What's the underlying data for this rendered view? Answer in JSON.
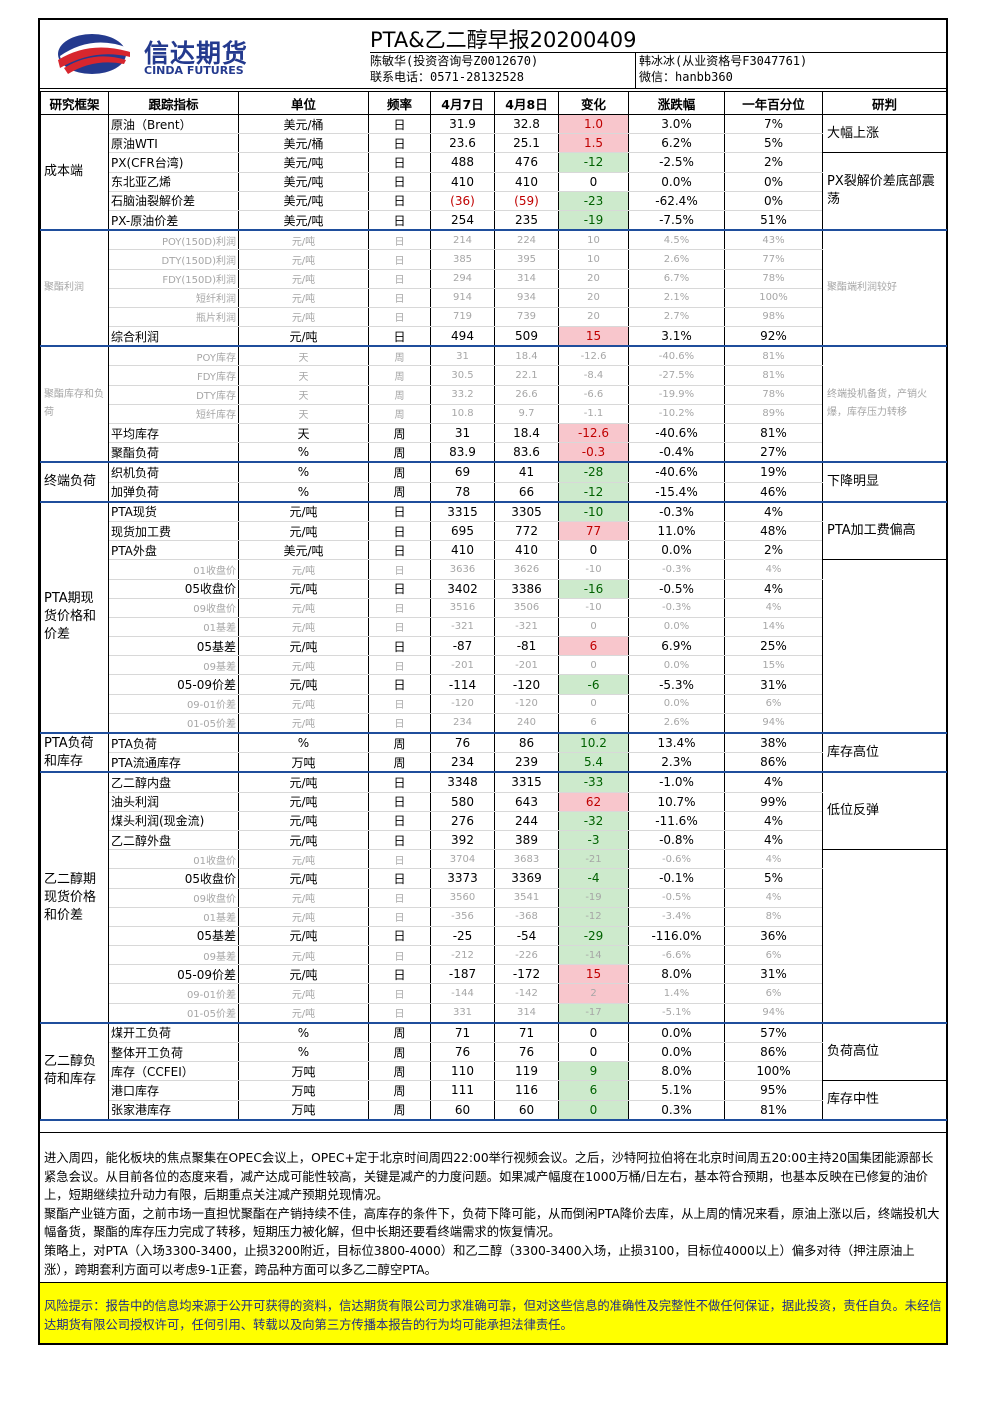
{
  "header": {
    "logo_cn": "信达期货",
    "logo_en": "CINDA FUTURES",
    "title": "PTA&乙二醇早报20200409",
    "analyst_left": "陈敏华(投资咨询号Z0012670)",
    "contact": "联系电话：0571-28132528",
    "analyst_right": "韩冰冰(从业资格号F3047761)",
    "wechat": "微信：hanbb360"
  },
  "columns": [
    "研究框架",
    "跟踪指标",
    "单位",
    "频率",
    "4月7日",
    "4月8日",
    "变化",
    "涨跌幅",
    "一年百分位",
    "研判"
  ],
  "sections": [
    {
      "name": "成本端",
      "judgement": [
        "大幅上涨",
        "PX裂解价差底部震荡"
      ]
    },
    {
      "name": "聚酯利润",
      "judgement": [
        "聚酯端利润较好"
      ]
    },
    {
      "name": "聚酯库存和负荷",
      "judgement": [
        "终端投机备货，产销火爆，库存压力转移"
      ]
    },
    {
      "name": "终端负荷",
      "judgement": [
        "下降明显"
      ]
    },
    {
      "name": "PTA期现货价格和价差",
      "judgement": [
        "PTA加工费偏高"
      ]
    },
    {
      "name": "PTA负荷和库存",
      "judgement": [
        "库存高位"
      ]
    },
    {
      "name": "乙二醇期现货价格和价差",
      "judgement": [
        "低位反弹"
      ]
    },
    {
      "name": "乙二醇负荷和库存",
      "judgement": [
        "负荷高位",
        "库存中性"
      ]
    }
  ],
  "rows": [
    [
      "原油（Brent）",
      "美元/桶",
      "日",
      "31.9",
      "32.8",
      "1.0",
      "3.0%",
      "7%"
    ],
    [
      "原油WTI",
      "美元/桶",
      "日",
      "23.6",
      "25.1",
      "1.5",
      "6.2%",
      "5%"
    ],
    [
      "PX(CFR台湾)",
      "美元/吨",
      "日",
      "488",
      "476",
      "-12",
      "-2.5%",
      "2%"
    ],
    [
      "东北亚乙烯",
      "美元/吨",
      "日",
      "410",
      "410",
      "0",
      "0.0%",
      "0%"
    ],
    [
      "石脑油裂解价差",
      "美元/吨",
      "日",
      "(36)",
      "(59)",
      "-23",
      "-62.4%",
      "0%"
    ],
    [
      "PX-原油价差",
      "美元/吨",
      "日",
      "254",
      "235",
      "-19",
      "-7.5%",
      "51%"
    ],
    [
      "POY(150D)利润",
      "元/吨",
      "日",
      "214",
      "224",
      "10",
      "4.5%",
      "43%"
    ],
    [
      "DTY(150D)利润",
      "元/吨",
      "日",
      "385",
      "395",
      "10",
      "2.6%",
      "77%"
    ],
    [
      "FDY(150D)利润",
      "元/吨",
      "日",
      "294",
      "314",
      "20",
      "6.7%",
      "78%"
    ],
    [
      "短纤利润",
      "元/吨",
      "日",
      "914",
      "934",
      "20",
      "2.1%",
      "100%"
    ],
    [
      "瓶片利润",
      "元/吨",
      "日",
      "719",
      "739",
      "20",
      "2.7%",
      "98%"
    ],
    [
      "综合利润",
      "元/吨",
      "日",
      "494",
      "509",
      "15",
      "3.1%",
      "92%"
    ],
    [
      "POY库存",
      "天",
      "周",
      "31",
      "18.4",
      "-12.6",
      "-40.6%",
      "81%"
    ],
    [
      "FDY库存",
      "天",
      "周",
      "30.5",
      "22.1",
      "-8.4",
      "-27.5%",
      "81%"
    ],
    [
      "DTY库存",
      "天",
      "周",
      "33.2",
      "26.6",
      "-6.6",
      "-19.9%",
      "78%"
    ],
    [
      "短纤库存",
      "天",
      "周",
      "10.8",
      "9.7",
      "-1.1",
      "-10.2%",
      "89%"
    ],
    [
      "平均库存",
      "天",
      "周",
      "31",
      "18.4",
      "-12.6",
      "-40.6%",
      "81%"
    ],
    [
      "聚酯负荷",
      "%",
      "周",
      "83.9",
      "83.6",
      "-0.3",
      "-0.4%",
      "27%"
    ],
    [
      "织机负荷",
      "%",
      "周",
      "69",
      "41",
      "-28",
      "-40.6%",
      "19%"
    ],
    [
      "加弹负荷",
      "%",
      "周",
      "78",
      "66",
      "-12",
      "-15.4%",
      "46%"
    ],
    [
      "PTA现货",
      "元/吨",
      "日",
      "3315",
      "3305",
      "-10",
      "-0.3%",
      "4%"
    ],
    [
      "现货加工费",
      "元/吨",
      "日",
      "695",
      "772",
      "77",
      "11.0%",
      "48%"
    ],
    [
      "PTA外盘",
      "美元/吨",
      "日",
      "410",
      "410",
      "0",
      "0.0%",
      "2%"
    ],
    [
      "01收盘价",
      "元/吨",
      "日",
      "3636",
      "3626",
      "-10",
      "-0.3%",
      "4%"
    ],
    [
      "05收盘价",
      "元/吨",
      "日",
      "3402",
      "3386",
      "-16",
      "-0.5%",
      "4%"
    ],
    [
      "09收盘价",
      "元/吨",
      "日",
      "3516",
      "3506",
      "-10",
      "-0.3%",
      "4%"
    ],
    [
      "01基差",
      "元/吨",
      "日",
      "-321",
      "-321",
      "0",
      "0.0%",
      "14%"
    ],
    [
      "05基差",
      "元/吨",
      "日",
      "-87",
      "-81",
      "6",
      "6.9%",
      "25%"
    ],
    [
      "09基差",
      "元/吨",
      "日",
      "-201",
      "-201",
      "0",
      "0.0%",
      "15%"
    ],
    [
      "05-09价差",
      "元/吨",
      "日",
      "-114",
      "-120",
      "-6",
      "-5.3%",
      "31%"
    ],
    [
      "09-01价差",
      "元/吨",
      "日",
      "-120",
      "-120",
      "0",
      "0.0%",
      "6%"
    ],
    [
      "01-05价差",
      "元/吨",
      "日",
      "234",
      "240",
      "6",
      "2.6%",
      "94%"
    ],
    [
      "PTA负荷",
      "%",
      "周",
      "76",
      "86",
      "10.2",
      "13.4%",
      "38%"
    ],
    [
      "PTA流通库存",
      "万吨",
      "周",
      "234",
      "239",
      "5.4",
      "2.3%",
      "86%"
    ],
    [
      "乙二醇内盘",
      "元/吨",
      "日",
      "3348",
      "3315",
      "-33",
      "-1.0%",
      "4%"
    ],
    [
      "油头利润",
      "元/吨",
      "日",
      "580",
      "643",
      "62",
      "10.7%",
      "99%"
    ],
    [
      "煤头利润(现金流)",
      "元/吨",
      "日",
      "276",
      "244",
      "-32",
      "-11.6%",
      "4%"
    ],
    [
      "乙二醇外盘",
      "元/吨",
      "日",
      "392",
      "389",
      "-3",
      "-0.8%",
      "4%"
    ],
    [
      "01收盘价",
      "元/吨",
      "日",
      "3704",
      "3683",
      "-21",
      "-0.6%",
      "4%"
    ],
    [
      "05收盘价",
      "元/吨",
      "日",
      "3373",
      "3369",
      "-4",
      "-0.1%",
      "5%"
    ],
    [
      "09收盘价",
      "元/吨",
      "日",
      "3560",
      "3541",
      "-19",
      "-0.5%",
      "4%"
    ],
    [
      "01基差",
      "元/吨",
      "日",
      "-356",
      "-368",
      "-12",
      "-3.4%",
      "8%"
    ],
    [
      "05基差",
      "元/吨",
      "日",
      "-25",
      "-54",
      "-29",
      "-116.0%",
      "36%"
    ],
    [
      "09基差",
      "元/吨",
      "日",
      "-212",
      "-226",
      "-14",
      "-6.6%",
      "6%"
    ],
    [
      "05-09价差",
      "元/吨",
      "日",
      "-187",
      "-172",
      "15",
      "8.0%",
      "31%"
    ],
    [
      "09-01价差",
      "元/吨",
      "日",
      "-144",
      "-142",
      "2",
      "1.4%",
      "6%"
    ],
    [
      "01-05价差",
      "元/吨",
      "日",
      "331",
      "314",
      "-17",
      "-5.1%",
      "94%"
    ],
    [
      "煤开工负荷",
      "%",
      "周",
      "71",
      "71",
      "0",
      "0.0%",
      "57%"
    ],
    [
      "整体开工负荷",
      "%",
      "周",
      "76",
      "76",
      "0",
      "0.0%",
      "86%"
    ],
    [
      "库存（CCFEI）",
      "万吨",
      "周",
      "110",
      "119",
      "9",
      "8.0%",
      "100%"
    ],
    [
      "港口库存",
      "万吨",
      "周",
      "111",
      "116",
      "6",
      "5.1%",
      "95%"
    ],
    [
      "张家港库存",
      "万吨",
      "周",
      "60",
      "60",
      "0",
      "0.3%",
      "81%"
    ]
  ],
  "commentary": [
    "进入周四，能化板块的焦点聚集在OPEC会议上，OPEC+定于北京时间周四22:00举行视频会议。之后，沙特阿拉伯将在北京时间周五20:00主持20国集团能源部长紧急会议。从目前各位的态度来看，减产达成可能性较高，关键是减产的力度问题。如果减产幅度在1000万桶/日左右，基本符合预期，也基本反映在已修复的油价上，短期继续拉升动力有限，后期重点关注减产预期兑现情况。",
    "聚酯产业链方面，之前市场一直担忧聚酯在产销持续不佳，高库存的条件下，负荷下降可能，从而倒闲PTA降价去库，从上周的情况来看，原油上涨以后，终端投机大幅备货，聚酯的库存压力完成了转移，短期压力被化解，但中长期还要看终端需求的恢复情况。",
    "策略上，对PTA（入场3300-3400，止损3200附近，目标位3800-4000）和乙二醇（3300-3400入场，止损3100，目标位4000以上）偏多对待（押注原油上涨），跨期套利方面可以考虑9-1正套，跨品种方面可以多乙二醇空PTA。"
  ],
  "risk": "风险提示：报告中的信息均来源于公开可获得的资料，信达期货有限公司力求准确可靠，但对这些信息的准确性及完整性不做任何保证，据此投资，责任自负。未经信达期货有限公司授权许可，任何引用、转载以及向第三方传播本报告的行为均可能承担法律责任。",
  "colors": {
    "up_bg": "#f8c6cc",
    "up_text": "#c00000",
    "down_bg": "#cdeacc",
    "down_text": "#006100",
    "brand": "#243a8e",
    "risk_bg": "#ffff00"
  }
}
